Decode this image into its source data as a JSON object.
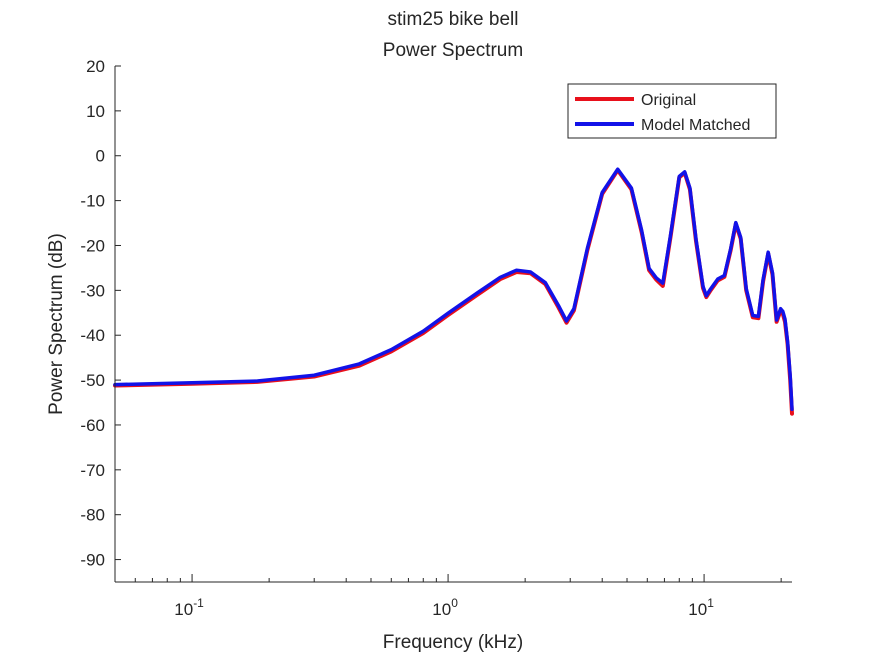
{
  "chart_data": {
    "type": "line",
    "title": "stim25 bike bell",
    "subtitle": "Power Spectrum",
    "xlabel": "Frequency (kHz)",
    "ylabel": "Power Spectrum (dB)",
    "x_scale": "log",
    "xlim": [
      0.05,
      22.05
    ],
    "ylim": [
      -95,
      20
    ],
    "x_ticks": [
      {
        "value": 0.1,
        "base": "10",
        "exp": "-1"
      },
      {
        "value": 1,
        "base": "10",
        "exp": "0"
      },
      {
        "value": 10,
        "base": "10",
        "exp": "1"
      }
    ],
    "y_ticks": [
      20,
      10,
      0,
      -10,
      -20,
      -30,
      -40,
      -50,
      -60,
      -70,
      -80,
      -90
    ],
    "grid": false,
    "legend_position": "top-right",
    "series": [
      {
        "name": "Original",
        "color": "#e8101b",
        "x": [
          0.05,
          0.1,
          0.18,
          0.3,
          0.45,
          0.6,
          0.8,
          1.0,
          1.3,
          1.6,
          1.85,
          2.1,
          2.4,
          2.7,
          2.9,
          3.1,
          3.5,
          4.0,
          4.6,
          5.2,
          5.7,
          6.1,
          6.5,
          6.9,
          7.4,
          8.0,
          8.4,
          8.8,
          9.3,
          9.9,
          10.2,
          10.6,
          11.3,
          12.0,
          12.7,
          13.3,
          13.9,
          14.6,
          15.5,
          16.3,
          17.0,
          17.8,
          18.5,
          19.2,
          19.9,
          20.3,
          20.7,
          21.2,
          21.7,
          22.05
        ],
        "values": [
          -51.2,
          -50.8,
          -50.4,
          -49.2,
          -46.8,
          -43.6,
          -39.5,
          -35.5,
          -31.0,
          -27.5,
          -25.9,
          -26.2,
          -28.6,
          -33.8,
          -37.2,
          -34.5,
          -21.0,
          -8.5,
          -3.2,
          -7.5,
          -17.0,
          -25.5,
          -27.6,
          -29.0,
          -18.0,
          -4.8,
          -3.8,
          -7.5,
          -19.0,
          -29.5,
          -31.5,
          -30.0,
          -27.8,
          -27.0,
          -21.0,
          -15.2,
          -18.5,
          -30.0,
          -36.0,
          -36.2,
          -28.0,
          -21.8,
          -26.5,
          -37.0,
          -34.5,
          -35.2,
          -37.0,
          -42.0,
          -50.0,
          -57.5
        ]
      },
      {
        "name": "Model Matched",
        "color": "#1212e8",
        "x": [
          0.05,
          0.1,
          0.18,
          0.3,
          0.45,
          0.6,
          0.8,
          1.0,
          1.3,
          1.6,
          1.85,
          2.1,
          2.4,
          2.7,
          2.9,
          3.1,
          3.5,
          4.0,
          4.6,
          5.2,
          5.7,
          6.1,
          6.5,
          6.9,
          7.4,
          8.0,
          8.4,
          8.8,
          9.3,
          9.9,
          10.2,
          10.6,
          11.3,
          12.0,
          12.7,
          13.3,
          13.9,
          14.6,
          15.5,
          16.3,
          17.0,
          17.8,
          18.5,
          19.2,
          19.9,
          20.3,
          20.7,
          21.2,
          21.7,
          22.05
        ],
        "values": [
          -51.0,
          -50.6,
          -50.2,
          -48.9,
          -46.4,
          -43.2,
          -39.1,
          -35.1,
          -30.6,
          -27.1,
          -25.5,
          -25.9,
          -28.3,
          -33.4,
          -36.8,
          -34.1,
          -20.6,
          -8.2,
          -3.0,
          -7.2,
          -16.6,
          -25.1,
          -27.2,
          -28.4,
          -17.6,
          -4.6,
          -3.6,
          -7.2,
          -18.6,
          -29.1,
          -31.2,
          -29.7,
          -27.5,
          -26.7,
          -20.7,
          -14.9,
          -18.2,
          -29.6,
          -35.6,
          -35.8,
          -27.6,
          -21.5,
          -26.1,
          -36.6,
          -34.1,
          -34.7,
          -36.4,
          -41.5,
          -49.0,
          -56.5
        ]
      }
    ]
  }
}
